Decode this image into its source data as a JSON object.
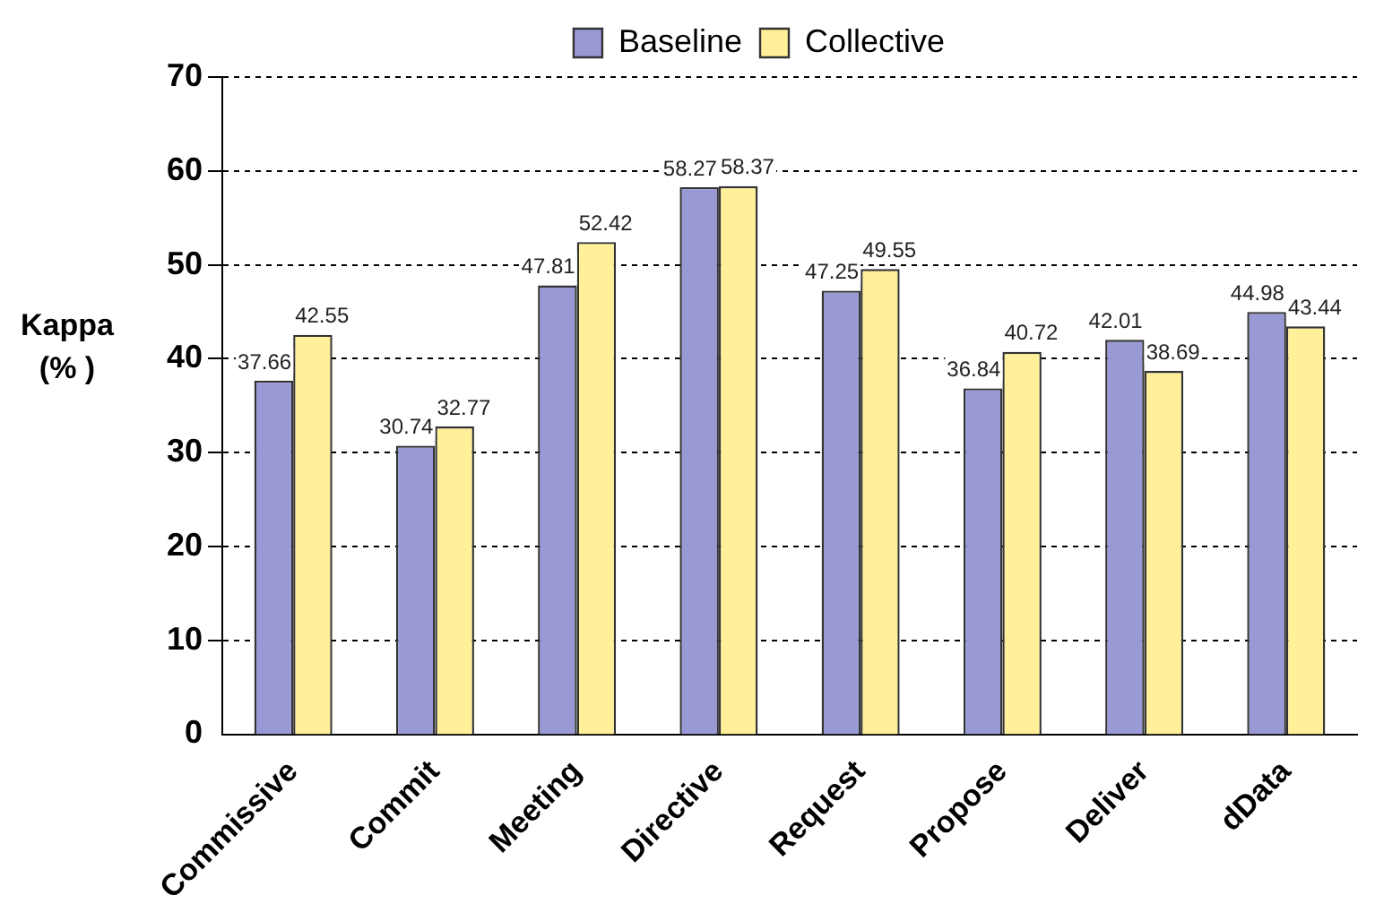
{
  "chart_data": {
    "type": "bar",
    "ylabel": "Kappa\n(% )",
    "categories": [
      "Commissive",
      "Commit",
      "Meeting",
      "Directive",
      "Request",
      "Propose",
      "Deliver",
      "dData"
    ],
    "series": [
      {
        "name": "Baseline",
        "color": "#9999d6",
        "values": [
          37.66,
          30.74,
          47.81,
          58.27,
          47.25,
          36.84,
          42.01,
          44.98
        ]
      },
      {
        "name": "Collective",
        "color": "#fff099",
        "values": [
          42.55,
          32.77,
          52.42,
          58.37,
          49.55,
          40.72,
          38.69,
          43.44
        ]
      }
    ],
    "ylim": [
      0,
      70
    ],
    "yticks": [
      0,
      10,
      20,
      30,
      40,
      50,
      60,
      70
    ],
    "grid": "y",
    "legend": "top",
    "data_labels": true
  }
}
